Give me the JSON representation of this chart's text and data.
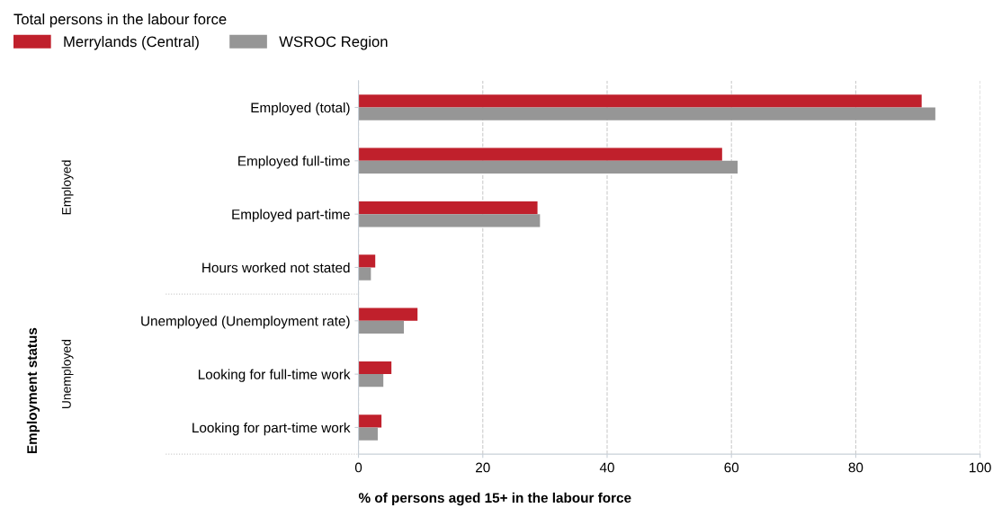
{
  "chart_data": {
    "type": "bar",
    "orientation": "horizontal",
    "legend_title": "Total persons in the labour force",
    "xlabel": "% of persons aged 15+ in the labour force",
    "categories": [
      "Employed (total)",
      "Employed full-time",
      "Employed part-time",
      "Hours worked not stated",
      "Unemployed (Unemployment rate)",
      "Looking for full-time work",
      "Looking for part-time work"
    ],
    "series": [
      {
        "name": "Merrylands (Central)",
        "color": "#c0202c",
        "values": [
          90.6,
          58.5,
          28.8,
          2.7,
          9.5,
          5.3,
          3.7
        ]
      },
      {
        "name": "WSROC Region",
        "color": "#969696",
        "values": [
          92.8,
          61.0,
          29.2,
          2.0,
          7.3,
          4.0,
          3.1
        ]
      }
    ],
    "annotations": [
      "Employment status",
      "Employed",
      "Unemployed"
    ],
    "xlim": [
      0,
      100
    ],
    "xticks": [
      0,
      20,
      40,
      60,
      80,
      100
    ],
    "grid": "x",
    "legend": "top left"
  }
}
